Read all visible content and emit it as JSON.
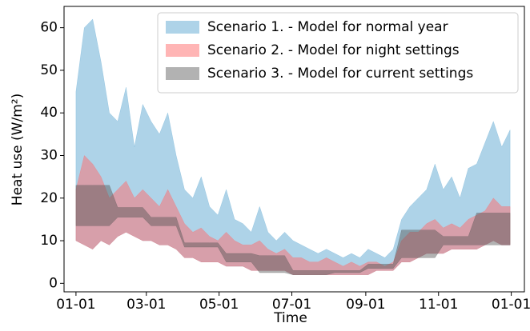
{
  "chart_data": {
    "type": "band",
    "xlabel": "Time",
    "ylabel": "Heat use (W/m²)",
    "x": [
      0,
      7,
      14,
      21,
      28,
      35,
      42,
      49,
      56,
      63,
      70,
      77,
      84,
      91,
      98,
      105,
      112,
      119,
      126,
      133,
      140,
      147,
      154,
      161,
      168,
      175,
      182,
      189,
      196,
      203,
      210,
      217,
      224,
      231,
      238,
      245,
      252,
      259,
      266,
      273,
      280,
      287,
      294,
      301,
      308,
      315,
      322,
      329,
      336,
      343,
      350,
      357,
      364
    ],
    "xlim": [
      -10,
      376
    ],
    "xticks": [
      {
        "value": 0,
        "label": "01-01"
      },
      {
        "value": 59,
        "label": "03-01"
      },
      {
        "value": 120,
        "label": "05-01"
      },
      {
        "value": 181,
        "label": "07-01"
      },
      {
        "value": 243,
        "label": "09-01"
      },
      {
        "value": 304,
        "label": "11-01"
      },
      {
        "value": 365,
        "label": "01-01"
      }
    ],
    "ylim": [
      -2,
      65
    ],
    "yticks": [
      0,
      10,
      20,
      30,
      40,
      50,
      60
    ],
    "legend": "upper right",
    "series": [
      {
        "name": "Scenario 1. - Model for normal year",
        "color": "#6baed6",
        "opacity": 0.55,
        "values": [
          45,
          60,
          62,
          52,
          40,
          38,
          46,
          32,
          42,
          38,
          35,
          40,
          30,
          22,
          20,
          25,
          18,
          16,
          22,
          15,
          14,
          12,
          18,
          12,
          10,
          12,
          10,
          9,
          8,
          7,
          8,
          7,
          6,
          7,
          6,
          8,
          7,
          6,
          8,
          15,
          18,
          20,
          22,
          28,
          22,
          25,
          20,
          27,
          28,
          33,
          38,
          32,
          36
        ],
        "lower": [
          10,
          9,
          8,
          10,
          9,
          11,
          12,
          11,
          10,
          10,
          9,
          9,
          8,
          6,
          6,
          5,
          5,
          5,
          4,
          4,
          4,
          3,
          3,
          3,
          3,
          3,
          2,
          2,
          2,
          2,
          2,
          2,
          2,
          2,
          2,
          2,
          3,
          3,
          3,
          5,
          5,
          6,
          7,
          7,
          7,
          8,
          8,
          8,
          8,
          9,
          10,
          9,
          9
        ]
      },
      {
        "name": "Scenario 2. - Model for night settings",
        "color": "#ff6b6b",
        "opacity": 0.5,
        "values": [
          22,
          30,
          28,
          25,
          20,
          22,
          24,
          20,
          22,
          20,
          18,
          22,
          18,
          14,
          12,
          13,
          11,
          10,
          12,
          10,
          9,
          9,
          10,
          8,
          7,
          8,
          6,
          6,
          5,
          5,
          6,
          5,
          4,
          5,
          4,
          5,
          5,
          4,
          5,
          10,
          12,
          12,
          14,
          15,
          13,
          14,
          13,
          15,
          16,
          17,
          20,
          18,
          18
        ],
        "lower": [
          10,
          9,
          8,
          10,
          9,
          11,
          12,
          11,
          10,
          10,
          9,
          9,
          8,
          6,
          6,
          5,
          5,
          5,
          4,
          4,
          4,
          3,
          3,
          3,
          3,
          3,
          2,
          2,
          2,
          2,
          2,
          2,
          2,
          2,
          2,
          2,
          3,
          3,
          3,
          5,
          5,
          6,
          7,
          7,
          7,
          8,
          8,
          8,
          8,
          9,
          10,
          9,
          9
        ]
      },
      {
        "name": "Scenario 3. - Model for current settings",
        "color": "#555555",
        "opacity": 0.45,
        "values": [
          23,
          23,
          23,
          23,
          23,
          17.8,
          17.8,
          17.8,
          17.8,
          15.5,
          15.5,
          15.5,
          15.5,
          9.5,
          9.5,
          9.5,
          9.5,
          9.5,
          7,
          7,
          7,
          7,
          6.5,
          6.5,
          6.5,
          6.5,
          3,
          3,
          3,
          3,
          3,
          3,
          3,
          3,
          3,
          4.5,
          4.5,
          4.5,
          4.5,
          12.5,
          12.5,
          12.5,
          12.5,
          12.5,
          11,
          11,
          11,
          11,
          16.5,
          16.5,
          16.5,
          16.5,
          16.5
        ],
        "lower": [
          13.5,
          13.5,
          13.5,
          13.5,
          13.5,
          15.5,
          15.5,
          15.5,
          15.5,
          13.5,
          13.5,
          13.5,
          13.5,
          8.5,
          8.5,
          8.5,
          8.5,
          8.5,
          5,
          5,
          5,
          5,
          2.5,
          2.5,
          2.5,
          2.5,
          2,
          2,
          2,
          2,
          2,
          2.5,
          2.5,
          2.5,
          2.5,
          3.5,
          3.5,
          3.5,
          3.5,
          6,
          6,
          6,
          6,
          6,
          9,
          9,
          9,
          9,
          9,
          9,
          9,
          9,
          9
        ]
      }
    ]
  }
}
